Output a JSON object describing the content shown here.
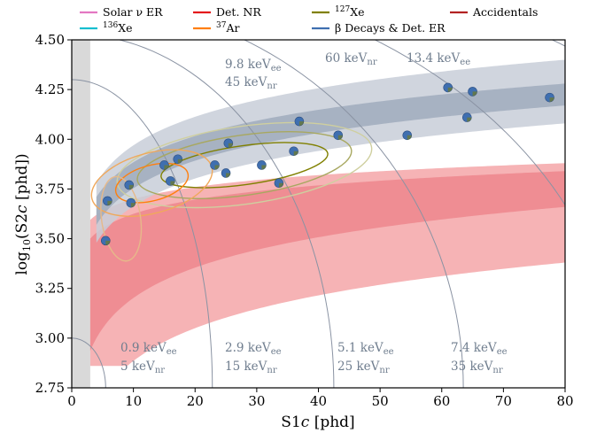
{
  "chart_data": {
    "type": "scatter",
    "xlabel": "S1c [phd]",
    "ylabel": "log10(S2c [phd])",
    "xlim": [
      0,
      80
    ],
    "ylim": [
      2.75,
      4.5
    ],
    "x_ticks": [
      0,
      10,
      20,
      30,
      40,
      50,
      60,
      70,
      80
    ],
    "y_ticks": [
      2.75,
      3.0,
      3.25,
      3.5,
      3.75,
      4.0,
      4.25,
      4.5
    ],
    "x_tick_labels": [
      "0",
      "10",
      "20",
      "30",
      "40",
      "50",
      "60",
      "70",
      "80"
    ],
    "y_tick_labels": [
      "2.75",
      "3.00",
      "3.25",
      "3.50",
      "3.75",
      "4.00",
      "4.25",
      "4.50"
    ],
    "grid": false,
    "legend_position": "top, above plot",
    "legend": [
      {
        "label": "Solar ν ER",
        "color": "#e377c2"
      },
      {
        "label": "Det. NR",
        "color": "#e41a1c"
      },
      {
        "label": "127Xe",
        "color": "#808000"
      },
      {
        "label": "Accidentals",
        "color": "#b22222"
      },
      {
        "label": "136Xe",
        "color": "#17becf"
      },
      {
        "label": "37Ar",
        "color": "#ff7f0e"
      },
      {
        "label": "β Decays & Det. ER",
        "color": "#3f6fb0"
      }
    ],
    "energy_contours": {
      "ee_keV": [
        "0.9",
        "2.9",
        "5.1",
        "7.4",
        "9.8",
        "13.4"
      ],
      "nr_keV": [
        "5",
        "15",
        "25",
        "35",
        "45",
        "60"
      ],
      "labels": [
        {
          "ee": "0.9 keV",
          "nr": "5 keV"
        },
        {
          "ee": "2.9 keV",
          "nr": "15 keV"
        },
        {
          "ee": "5.1 keV",
          "nr": "25 keV"
        },
        {
          "ee": "7.4 keV",
          "nr": "35 keV"
        },
        {
          "ee": "9.8 keV",
          "nr": "45 keV"
        },
        {
          "ee": "13.4 keV",
          "nr": "60 keV"
        }
      ],
      "ee_subscript": "ee",
      "nr_subscript": "nr"
    },
    "threshold_band_x": [
      0,
      3
    ],
    "events": [
      {
        "x": 5.5,
        "y": 3.49
      },
      {
        "x": 5.8,
        "y": 3.69
      },
      {
        "x": 9.3,
        "y": 3.77
      },
      {
        "x": 9.6,
        "y": 3.68
      },
      {
        "x": 15.0,
        "y": 3.87
      },
      {
        "x": 16.0,
        "y": 3.79
      },
      {
        "x": 17.2,
        "y": 3.9
      },
      {
        "x": 23.2,
        "y": 3.87
      },
      {
        "x": 25.0,
        "y": 3.83
      },
      {
        "x": 25.4,
        "y": 3.98
      },
      {
        "x": 30.8,
        "y": 3.87
      },
      {
        "x": 33.6,
        "y": 3.78
      },
      {
        "x": 36.0,
        "y": 3.94
      },
      {
        "x": 36.9,
        "y": 4.09
      },
      {
        "x": 43.2,
        "y": 4.02
      },
      {
        "x": 54.4,
        "y": 4.02
      },
      {
        "x": 61.0,
        "y": 4.26
      },
      {
        "x": 64.1,
        "y": 4.11
      },
      {
        "x": 65.0,
        "y": 4.24
      },
      {
        "x": 77.5,
        "y": 4.21
      }
    ]
  }
}
